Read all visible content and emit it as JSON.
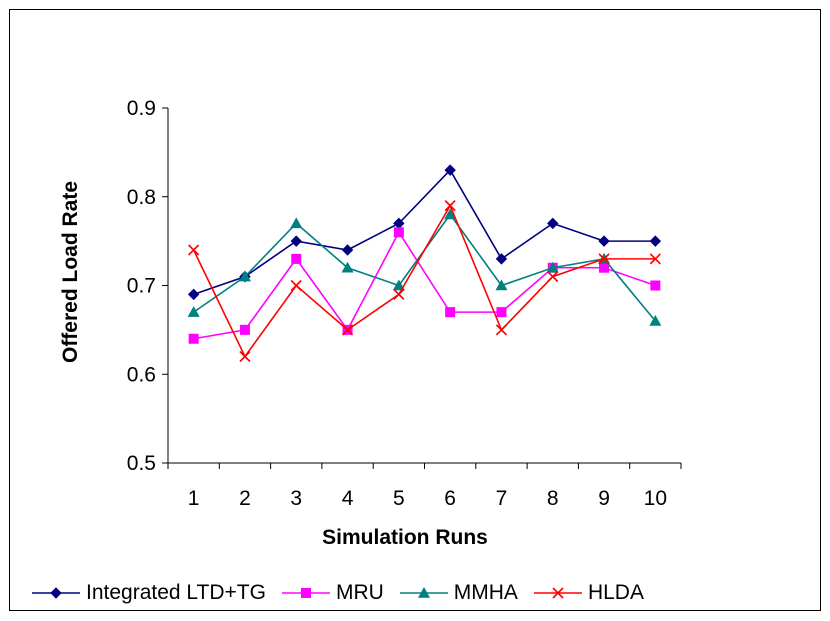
{
  "chart_data": {
    "type": "line",
    "xlabel": "Simulation Runs",
    "ylabel": "Offered Load Rate",
    "categories": [
      "1",
      "2",
      "3",
      "4",
      "5",
      "6",
      "7",
      "8",
      "9",
      "10"
    ],
    "ylim": [
      0.5,
      0.9
    ],
    "yticks": [
      "0.5",
      "0.6",
      "0.7",
      "0.8",
      "0.9"
    ],
    "grid": false,
    "legend_position": "bottom",
    "series": [
      {
        "name": "Integrated LTD+TG",
        "values": [
          0.69,
          0.71,
          0.75,
          0.74,
          0.77,
          0.83,
          0.73,
          0.77,
          0.75,
          0.75
        ],
        "color": "#000080",
        "marker": "diamond"
      },
      {
        "name": "MRU",
        "values": [
          0.64,
          0.65,
          0.73,
          0.65,
          0.76,
          0.67,
          0.67,
          0.72,
          0.72,
          0.7
        ],
        "color": "#ff00ff",
        "marker": "square"
      },
      {
        "name": "MMHA",
        "values": [
          0.67,
          0.71,
          0.77,
          0.72,
          0.7,
          0.78,
          0.7,
          0.72,
          0.73,
          0.66
        ],
        "color": "#008080",
        "marker": "triangle"
      },
      {
        "name": "HLDA",
        "values": [
          0.74,
          0.62,
          0.7,
          0.65,
          0.69,
          0.79,
          0.65,
          0.71,
          0.73,
          0.73
        ],
        "color": "#ff0000",
        "marker": "x"
      }
    ]
  }
}
